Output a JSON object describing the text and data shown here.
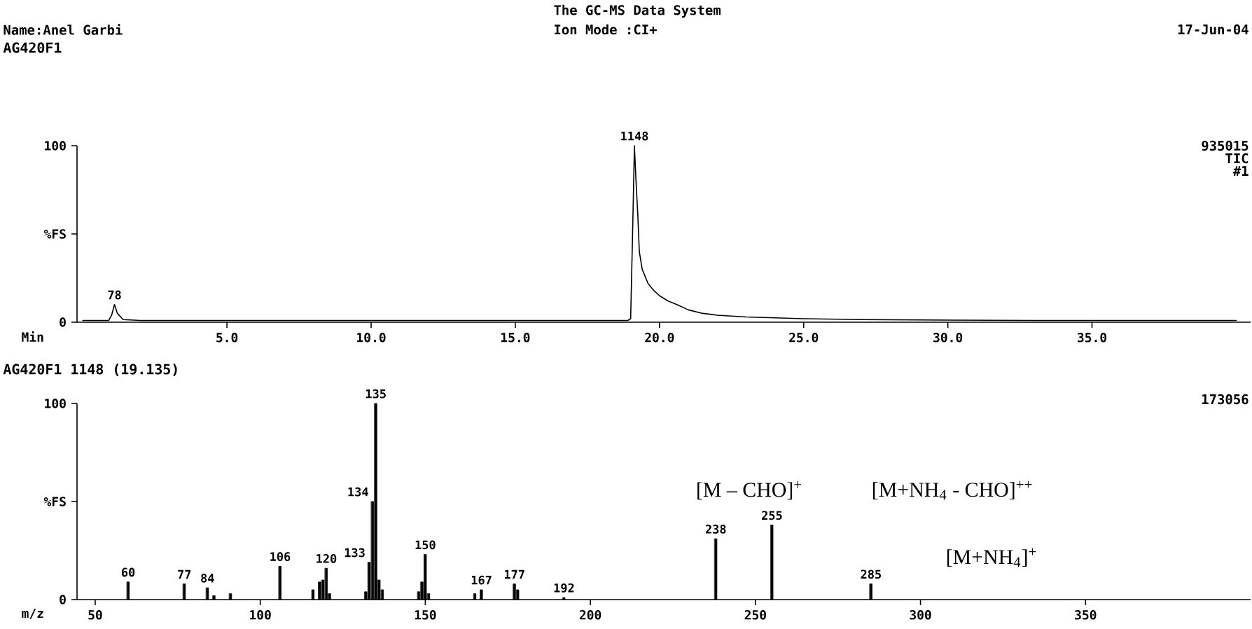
{
  "chart_data": [
    {
      "type": "line",
      "title": "AG420F1",
      "xlabel": "Min",
      "color": "#000000",
      "x": [
        0,
        0.9,
        1.0,
        1.1,
        1.2,
        1.4,
        2,
        5,
        10,
        15,
        18.9,
        19.0,
        19.08,
        19.13,
        19.18,
        19.25,
        19.3,
        19.4,
        19.6,
        19.8,
        20.0,
        20.3,
        20.6,
        21.0,
        21.5,
        22,
        23,
        24,
        25,
        27,
        30,
        33,
        36,
        40
      ],
      "values": [
        1,
        1,
        4,
        10,
        5,
        1.5,
        1,
        1,
        1,
        1,
        1,
        2,
        60,
        100,
        82,
        60,
        40,
        30,
        22,
        18,
        15,
        12,
        10,
        7,
        5,
        4,
        3,
        2.5,
        2,
        1.5,
        1.2,
        1,
        1,
        1
      ],
      "xlim": [
        -0.2,
        40.5
      ],
      "ylim": [
        0,
        100
      ],
      "xticks": [
        {
          "value": 5,
          "label": "5.0"
        },
        {
          "value": 10,
          "label": "10.0"
        },
        {
          "value": 15,
          "label": "15.0"
        },
        {
          "value": 20,
          "label": "20.0"
        },
        {
          "value": 25,
          "label": "25.0"
        },
        {
          "value": 30,
          "label": "30.0"
        },
        {
          "value": 35,
          "label": "35.0"
        }
      ],
      "yticks": [
        0,
        {
          "value": 50,
          "label": "%FS"
        },
        100
      ],
      "annotations": [
        "Name:Anel Garbi",
        "The GC-MS Data System",
        "Ion Mode :CI+",
        "17-Jun-04",
        "935015",
        "TIC",
        "#1",
        {
          "text": "78",
          "x": 1.1,
          "y": 10
        },
        {
          "text": "1148",
          "x": 19.13,
          "y": 100
        }
      ]
    },
    {
      "type": "bar",
      "title": "AG420F1 1148 (19.135)",
      "xlabel": "m/z",
      "color": "#000000",
      "x": [
        60,
        77,
        84,
        86,
        91,
        106,
        116,
        118,
        119,
        120,
        121,
        132,
        133,
        134,
        135,
        136,
        137,
        148,
        149,
        150,
        151,
        165,
        167,
        177,
        178,
        192,
        238,
        255,
        285
      ],
      "values": [
        9,
        8,
        6,
        2,
        3,
        17,
        5,
        9,
        10,
        16,
        3,
        4,
        19,
        50,
        100,
        10,
        5,
        4,
        9,
        23,
        3,
        3,
        5,
        8,
        5,
        1,
        31,
        38,
        8
      ],
      "xlim": [
        44.5,
        400
      ],
      "ylim": [
        0,
        100
      ],
      "xticks": [
        50,
        100,
        150,
        200,
        250,
        300,
        350
      ],
      "yticks": [
        0,
        {
          "value": 50,
          "label": "%FS"
        },
        100
      ],
      "annotations": [
        "[M – CHO]$^{+}$",
        "[M+NH$_{4}$ - CHO]$^{++}$",
        "[M+NH$_{4}$]$^{+}$",
        "173056",
        {
          "text": "60",
          "x": 60,
          "y": 9
        },
        {
          "text": "77",
          "x": 77,
          "y": 8
        },
        {
          "text": "84",
          "x": 84,
          "y": 6
        },
        {
          "text": "106",
          "x": 106,
          "y": 17
        },
        {
          "text": "120",
          "x": 120,
          "y": 16
        },
        {
          "text": "133",
          "x": 133,
          "y": 19
        },
        {
          "text": "134",
          "x": 134,
          "y": 50
        },
        {
          "text": "135",
          "x": 135,
          "y": 100
        },
        {
          "text": "150",
          "x": 150,
          "y": 23
        },
        {
          "text": "167",
          "x": 167,
          "y": 5
        },
        {
          "text": "177",
          "x": 177,
          "y": 8
        },
        {
          "text": "192",
          "x": 192,
          "y": 1
        },
        {
          "text": "238",
          "x": 238,
          "y": 31
        },
        {
          "text": "255",
          "x": 255,
          "y": 38
        },
        {
          "text": "285",
          "x": 285,
          "y": 8
        }
      ]
    }
  ]
}
